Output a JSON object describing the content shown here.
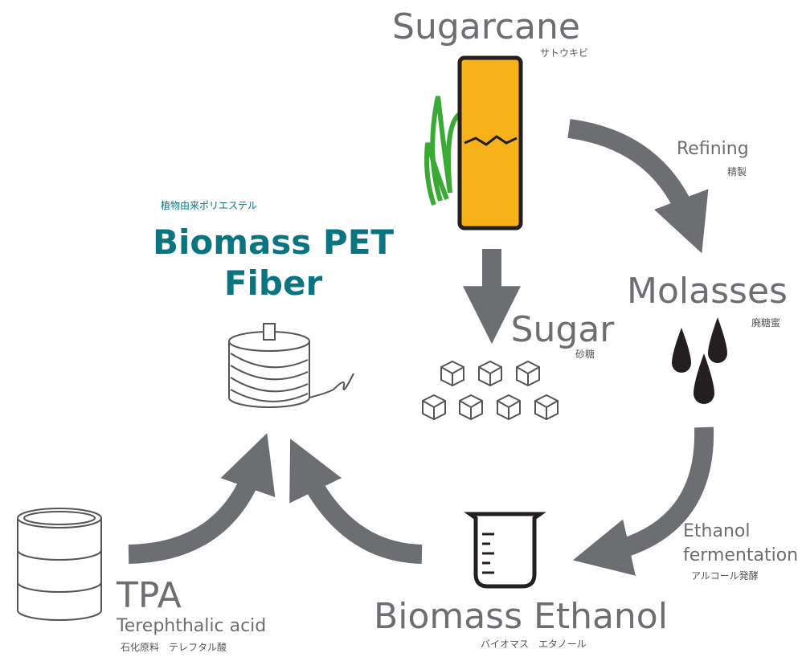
{
  "nodes": [
    {
      "label": "Sugarcane",
      "sublabel": "サトウキビ"
    },
    {
      "label": "Molasses",
      "sublabel": "廃糖蜜"
    },
    {
      "label": "Sugar",
      "sublabel": "砂糖"
    },
    {
      "label": "Biomass Ethanol",
      "sublabel": "バイオマス　エタノール"
    },
    {
      "label": "TPA",
      "description": "Terephthalic acid",
      "sublabel": "石化原料　テレフタル酸"
    },
    {
      "label_lines": [
        "Biomass PET",
        "Fiber"
      ],
      "sublabel": "植物由来ポリエステル"
    }
  ],
  "steps": [
    {
      "label": "Refining",
      "sublabel": "精製"
    },
    {
      "label_lines": [
        "Ethanol",
        "fermentation"
      ],
      "sublabel": "アルコール発酵"
    }
  ]
}
